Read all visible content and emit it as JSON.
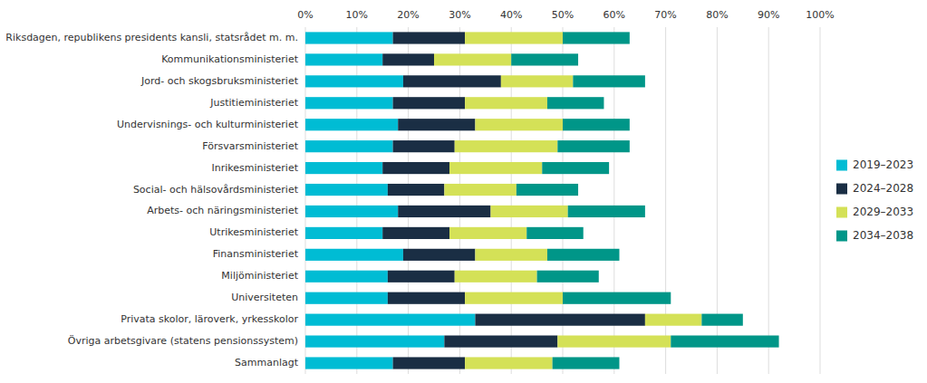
{
  "chart_data": {
    "type": "bar",
    "orientation": "horizontal",
    "stacked": true,
    "categories": [
      "Riksdagen, republikens presidents kansli, statsrådet m. m.",
      "Kommunikationsministeriet",
      "Jord- och skogsbruksministeriet",
      "Justitieministeriet",
      "Undervisnings- och kulturministeriet",
      "Försvarsministeriet",
      "Inrikesministeriet",
      "Social- och hälsovårdsministeriet",
      "Arbets- och näringsministeriet",
      "Utrikesministeriet",
      "Finansministeriet",
      "Miljöministeriet",
      "Universiteten",
      "Privata skolor, läroverk, yrkesskolor",
      "Övriga arbetsgivare (statens pensionssystem)",
      "Sammanlagt"
    ],
    "series": [
      {
        "name": "2019–2023",
        "color": "#00bcd4",
        "values": [
          17,
          15,
          19,
          17,
          18,
          17,
          15,
          16,
          18,
          15,
          19,
          16,
          16,
          33,
          27,
          17
        ]
      },
      {
        "name": "2024–2028",
        "color": "#1a2e44",
        "values": [
          14,
          10,
          19,
          14,
          15,
          12,
          13,
          11,
          18,
          13,
          14,
          13,
          15,
          33,
          22,
          14
        ]
      },
      {
        "name": "2029–2033",
        "color": "#d4e157",
        "values": [
          19,
          15,
          14,
          16,
          17,
          20,
          18,
          14,
          15,
          15,
          14,
          16,
          19,
          11,
          22,
          17
        ]
      },
      {
        "name": "2034–2038",
        "color": "#009688",
        "values": [
          13,
          13,
          14,
          11,
          13,
          14,
          13,
          12,
          15,
          11,
          14,
          12,
          21,
          8,
          21,
          13
        ]
      }
    ],
    "xlim": [
      0,
      100
    ],
    "xticks": [
      {
        "value": 0,
        "label": "0%"
      },
      {
        "value": 10,
        "label": "10%"
      },
      {
        "value": 20,
        "label": "20%"
      },
      {
        "value": 30,
        "label": "30%"
      },
      {
        "value": 40,
        "label": "40%"
      },
      {
        "value": 50,
        "label": "50%"
      },
      {
        "value": 60,
        "label": "60%"
      },
      {
        "value": 70,
        "label": "70%"
      },
      {
        "value": 80,
        "label": "80%"
      },
      {
        "value": 90,
        "label": "90%"
      },
      {
        "value": 100,
        "label": "100%"
      }
    ],
    "grid": true,
    "legend": "right"
  }
}
